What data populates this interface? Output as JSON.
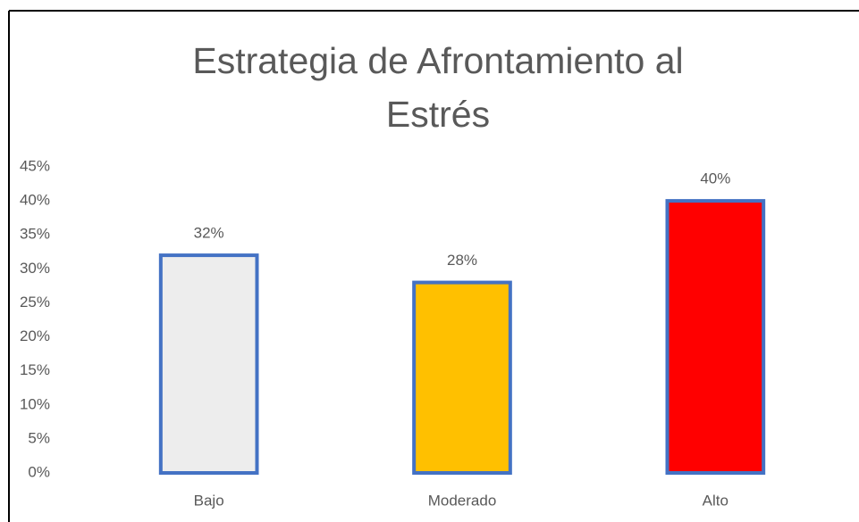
{
  "chart_data": {
    "type": "bar",
    "title": "Estrategia de Afrontamiento al Estrés",
    "categories": [
      "Bajo",
      "Moderado",
      "Alto"
    ],
    "values": [
      32,
      28,
      40
    ],
    "value_labels": [
      "32%",
      "28%",
      "40%"
    ],
    "colors": [
      "#ededed",
      "#ffc000",
      "#ff0000"
    ],
    "edge_color": "#4472c4",
    "ylim": [
      0,
      45
    ],
    "yticks": [
      {
        "value": 0,
        "label": "0%"
      },
      {
        "value": 5,
        "label": "5%"
      },
      {
        "value": 10,
        "label": "10%"
      },
      {
        "value": 15,
        "label": "15%"
      },
      {
        "value": 20,
        "label": "20%"
      },
      {
        "value": 25,
        "label": "25%"
      },
      {
        "value": 30,
        "label": "30%"
      },
      {
        "value": 35,
        "label": "35%"
      },
      {
        "value": 40,
        "label": "40%"
      },
      {
        "value": 45,
        "label": "45%"
      }
    ],
    "grid": false
  }
}
